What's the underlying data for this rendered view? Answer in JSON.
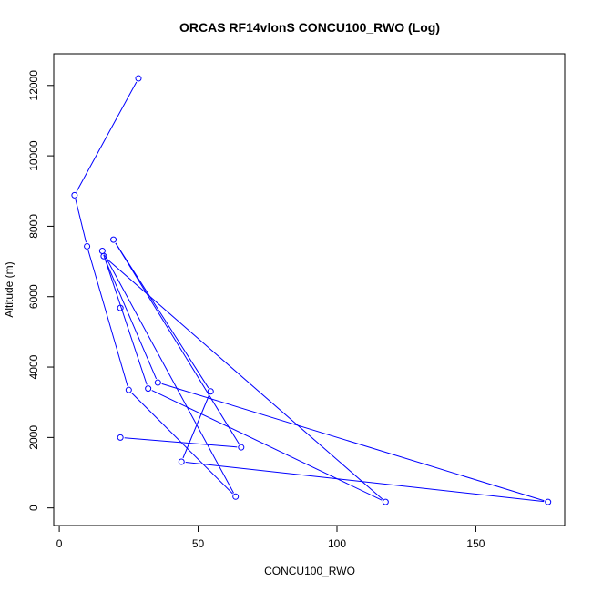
{
  "chart_data": {
    "type": "line",
    "title": "ORCAS RF14vlonS CONCU100_RWO (Log)",
    "xlabel": "CONCU100_RWO",
    "ylabel": "Altitude (m)",
    "xlim": [
      -2,
      182
    ],
    "ylim": [
      -500,
      12900
    ],
    "xticks": [
      0,
      50,
      100,
      150
    ],
    "yticks": [
      0,
      2000,
      4000,
      6000,
      8000,
      10000,
      12000
    ],
    "grid": false,
    "legend": "none",
    "series": [
      {
        "color": "#0000ff",
        "marker": "open-circle",
        "x": [
          28.5,
          5.5,
          10,
          25,
          63.5,
          15.5,
          32,
          117.5,
          16,
          35.5,
          176,
          44,
          54.5,
          19.5,
          65.5,
          22
        ],
        "y": [
          12200,
          8880,
          7430,
          3350,
          320,
          7300,
          3390,
          170,
          7150,
          3560,
          170,
          1310,
          3310,
          7620,
          1720,
          2000
        ]
      }
    ],
    "extra_points": [
      {
        "x": 22,
        "y": 5680
      }
    ]
  }
}
